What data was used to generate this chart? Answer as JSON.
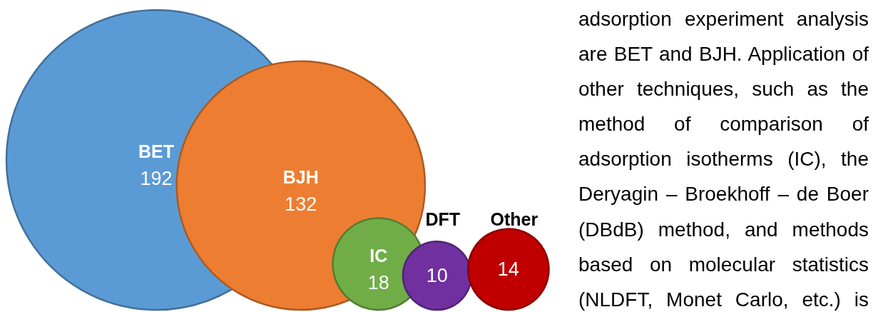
{
  "chart_data": {
    "type": "other",
    "categories": [
      "BET",
      "BJH",
      "IC",
      "DFT",
      "Other"
    ],
    "values": [
      192,
      132,
      18,
      10,
      14
    ],
    "colors": [
      "#5b9bd5",
      "#ed7d31",
      "#70ad47",
      "#7030a0",
      "#c00000"
    ],
    "data_labels": true,
    "annotations": [
      "adsorption experiment analysis\nare BET and BJH. Application of\nother techniques, such as the\nmethod of comparison of\nadsorption isotherms (IC), the\nDeryagin – Broekhoff – de Boer\n(DBdB) method, and methods\nbased on molecular statistics\n(NLDFT, Monet Carlo, etc.) is"
    ]
  }
}
